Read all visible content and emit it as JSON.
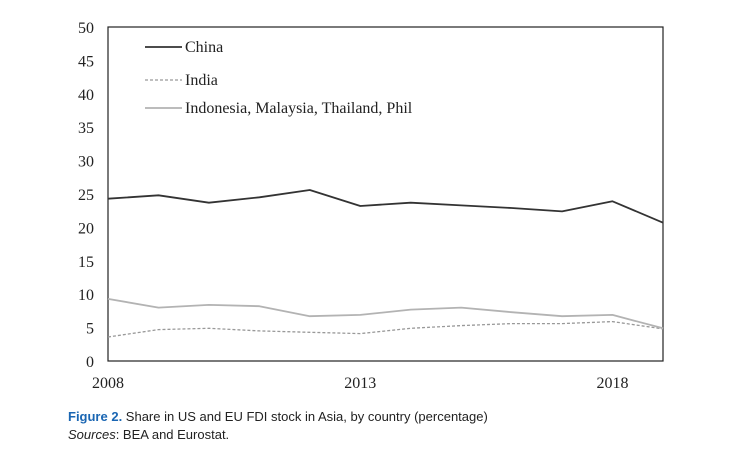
{
  "chart_data": {
    "type": "line",
    "title": "",
    "xlabel": "",
    "ylabel": "",
    "xlim": [
      2008,
      2019
    ],
    "ylim": [
      0,
      50
    ],
    "x_ticks": [
      "2008",
      "2013",
      "2018"
    ],
    "y_ticks": [
      "0",
      "5",
      "10",
      "15",
      "20",
      "25",
      "30",
      "35",
      "40",
      "45",
      "50"
    ],
    "grid": false,
    "legend_position": "top-left",
    "x": [
      2008,
      2009,
      2010,
      2011,
      2012,
      2013,
      2014,
      2015,
      2016,
      2017,
      2018,
      2019
    ],
    "series": [
      {
        "name": "China",
        "color": "#333333",
        "style": "solid",
        "values": [
          24.3,
          24.8,
          23.7,
          24.5,
          25.6,
          23.2,
          23.7,
          23.3,
          22.9,
          22.4,
          23.9,
          20.7
        ]
      },
      {
        "name": "India",
        "color": "#999999",
        "style": "dashed",
        "values": [
          3.6,
          4.7,
          4.9,
          4.5,
          4.3,
          4.1,
          4.9,
          5.3,
          5.6,
          5.6,
          5.9,
          4.8
        ]
      },
      {
        "name": "Indonesia, Malaysia, Thailand, Phil",
        "color": "#b3b3b3",
        "style": "solid",
        "values": [
          9.3,
          8.0,
          8.4,
          8.2,
          6.7,
          6.9,
          7.7,
          8.0,
          7.3,
          6.7,
          6.9,
          4.9
        ]
      }
    ]
  },
  "caption": {
    "figure_label": "Figure 2.",
    "figure_text": " Share in US and EU FDI stock in Asia, by country (percentage)",
    "sources_label": "Sources",
    "sources_text": ": BEA and Eurostat."
  }
}
